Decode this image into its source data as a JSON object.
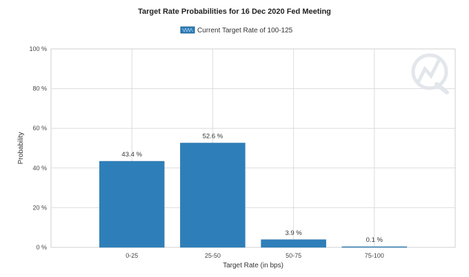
{
  "chart_data": {
    "type": "bar",
    "title": "Target Rate Probabilities for 16 Dec 2020 Fed Meeting",
    "legend": [
      "Current Target Rate of 100-125"
    ],
    "categories": [
      "0-25",
      "25-50",
      "50-75",
      "75-100"
    ],
    "series": [
      {
        "name": "Current Target Rate of 100-125",
        "values": [
          43.4,
          52.6,
          3.9,
          0.1
        ],
        "labels": [
          "43.4 %",
          "52.6 %",
          "3.9 %",
          "0.1 %"
        ]
      }
    ],
    "xlabel": "Target Rate (in bps)",
    "ylabel": "Probability",
    "ylim": [
      0,
      100
    ],
    "yticks": [
      "0 %",
      "20 %",
      "40 %",
      "60 %",
      "80 %",
      "100 %"
    ],
    "grid": true,
    "legend_position": "top-center"
  },
  "colors": {
    "bar": "#2e7fb9",
    "bar_edge": "#2a74a8",
    "grid": "#dcdcdc",
    "watermark": "#dfe3e8"
  }
}
